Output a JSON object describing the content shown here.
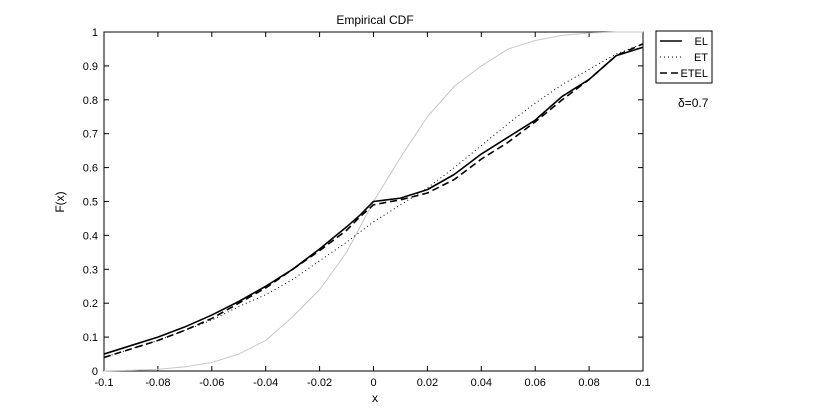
{
  "chart_data": {
    "type": "line",
    "title": "Empirical CDF",
    "xlabel": "x",
    "ylabel": "F(x)",
    "xlim": [
      -0.1,
      0.1
    ],
    "ylim": [
      0,
      1
    ],
    "xticks": [
      "-0.1",
      "-0.08",
      "-0.06",
      "-0.04",
      "-0.02",
      "0",
      "0.02",
      "0.04",
      "0.06",
      "0.08",
      "0.1"
    ],
    "yticks": [
      "0",
      "0.1",
      "0.2",
      "0.3",
      "0.4",
      "0.5",
      "0.6",
      "0.7",
      "0.8",
      "0.9",
      "1"
    ],
    "grid": false,
    "legend_position": "outside-right-top",
    "annotation": "δ=0.7",
    "series": [
      {
        "name": "EL",
        "style": "solid",
        "color": "#000000",
        "x": [
          -0.1,
          -0.09,
          -0.08,
          -0.07,
          -0.06,
          -0.05,
          -0.04,
          -0.03,
          -0.02,
          -0.01,
          -0.005,
          0,
          0.005,
          0.01,
          0.02,
          0.03,
          0.04,
          0.05,
          0.06,
          0.07,
          0.08,
          0.09,
          0.1
        ],
        "y": [
          0.05,
          0.075,
          0.1,
          0.13,
          0.165,
          0.205,
          0.25,
          0.3,
          0.36,
          0.425,
          0.46,
          0.5,
          0.505,
          0.51,
          0.535,
          0.58,
          0.64,
          0.69,
          0.74,
          0.81,
          0.86,
          0.93,
          0.955
        ]
      },
      {
        "name": "ET",
        "style": "dotted",
        "color": "#000000",
        "x": [
          -0.1,
          -0.09,
          -0.08,
          -0.07,
          -0.06,
          -0.05,
          -0.04,
          -0.03,
          -0.02,
          -0.01,
          0,
          0.01,
          0.02,
          0.03,
          0.04,
          0.05,
          0.06,
          0.07,
          0.08,
          0.09,
          0.1
        ],
        "y": [
          0.04,
          0.065,
          0.09,
          0.12,
          0.15,
          0.19,
          0.225,
          0.27,
          0.325,
          0.38,
          0.44,
          0.49,
          0.54,
          0.6,
          0.665,
          0.73,
          0.79,
          0.845,
          0.89,
          0.935,
          0.965
        ]
      },
      {
        "name": "ETEL",
        "style": "dashed",
        "color": "#000000",
        "x": [
          -0.1,
          -0.09,
          -0.08,
          -0.07,
          -0.06,
          -0.05,
          -0.04,
          -0.03,
          -0.02,
          -0.01,
          -0.005,
          0,
          0.005,
          0.01,
          0.02,
          0.03,
          0.04,
          0.05,
          0.06,
          0.07,
          0.08,
          0.09,
          0.1
        ],
        "y": [
          0.04,
          0.065,
          0.09,
          0.12,
          0.155,
          0.2,
          0.245,
          0.3,
          0.355,
          0.415,
          0.455,
          0.49,
          0.498,
          0.505,
          0.525,
          0.565,
          0.625,
          0.675,
          0.735,
          0.8,
          0.86,
          0.93,
          0.965
        ]
      },
      {
        "style": "solid",
        "color": "#c8c8c8",
        "x": [
          -0.1,
          -0.09,
          -0.08,
          -0.07,
          -0.06,
          -0.05,
          -0.04,
          -0.03,
          -0.02,
          -0.01,
          0,
          0.01,
          0.02,
          0.03,
          0.04,
          0.05,
          0.06,
          0.07,
          0.08,
          0.09,
          0.1
        ],
        "y": [
          0.0,
          0.002,
          0.005,
          0.012,
          0.025,
          0.05,
          0.09,
          0.16,
          0.24,
          0.35,
          0.5,
          0.63,
          0.75,
          0.84,
          0.9,
          0.95,
          0.975,
          0.99,
          0.997,
          1.0,
          1.0
        ]
      }
    ]
  }
}
